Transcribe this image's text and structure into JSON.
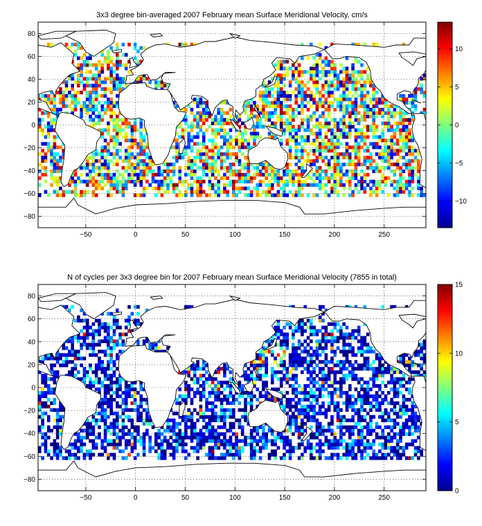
{
  "figure": {
    "background": "#ffffff"
  },
  "chart_data": [
    {
      "type": "heatmap",
      "title": "3x3 degree bin-averaged 2007 February mean Surface Meridional Velocity, cm/s",
      "xlabel": "",
      "ylabel": "",
      "xlim": [
        -98,
        292
      ],
      "ylim": [
        -90,
        90
      ],
      "xticks": [
        -50,
        0,
        50,
        100,
        150,
        200,
        250
      ],
      "yticks": [
        -80,
        -60,
        -40,
        -20,
        0,
        20,
        40,
        60,
        80
      ],
      "grid": true,
      "bin_size_deg": 3,
      "colorbar": {
        "colormap": "jet",
        "range": [
          -13.5,
          13.5
        ],
        "ticks": [
          -10,
          -5,
          0,
          5,
          10
        ]
      },
      "land_outline": true,
      "description_values": "dense speckled field of bin means over ocean between about 62S and 70N"
    },
    {
      "type": "heatmap",
      "title": "N of cycles per 3x3 degree bin for 2007 February mean Surface Meridional Velocity (7855 in total)",
      "xlabel": "",
      "ylabel": "",
      "xlim": [
        -98,
        292
      ],
      "ylim": [
        -90,
        90
      ],
      "xticks": [
        -50,
        0,
        50,
        100,
        150,
        200,
        250
      ],
      "yticks": [
        -80,
        -60,
        -40,
        -20,
        0,
        20,
        40,
        60,
        80
      ],
      "grid": true,
      "bin_size_deg": 3,
      "total_cycles": 7855,
      "colorbar": {
        "colormap": "jet",
        "range": [
          0,
          15
        ],
        "ticks": [
          0,
          5,
          10,
          15
        ]
      },
      "land_outline": true
    }
  ]
}
